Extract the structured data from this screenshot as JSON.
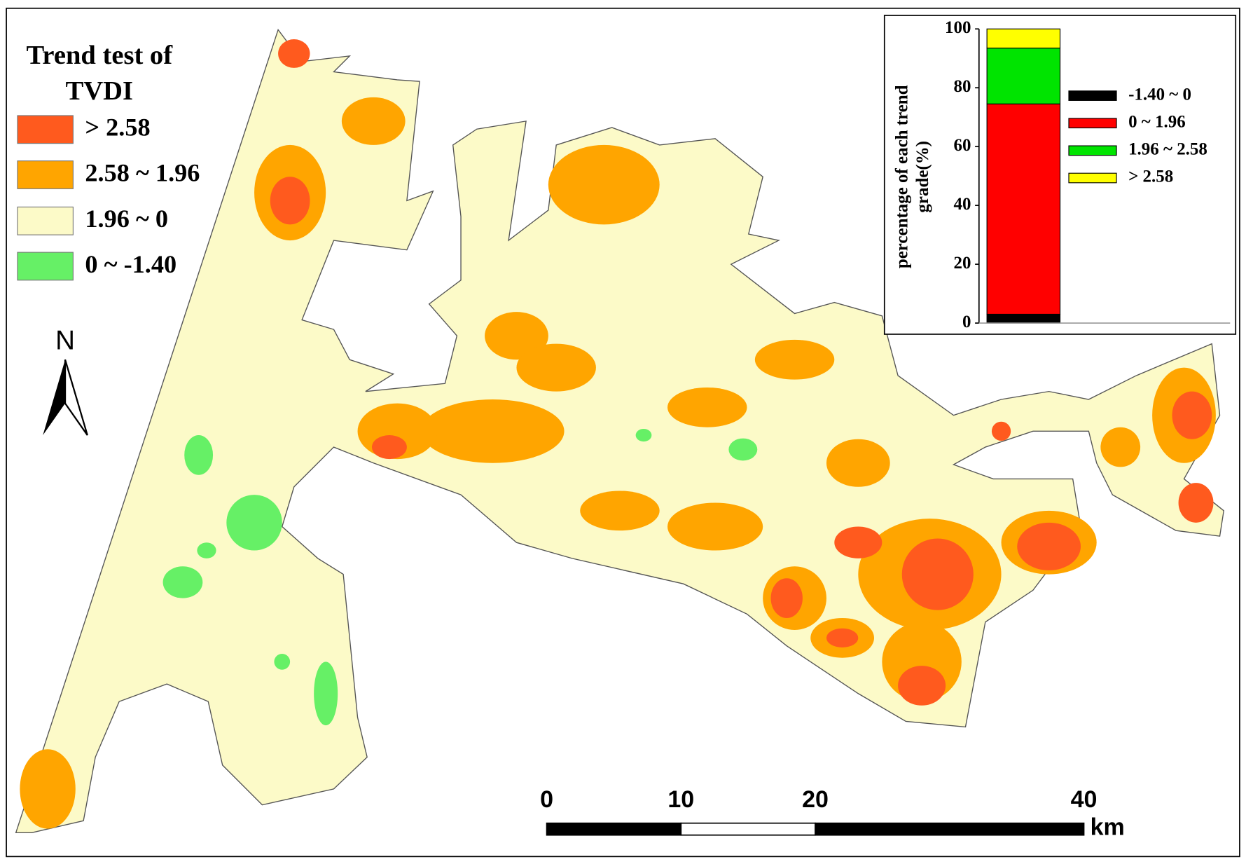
{
  "legend": {
    "title_lines": [
      "Trend test of",
      "TVDI"
    ],
    "items": [
      {
        "label": "> 2.58",
        "color": "#ff5a1e"
      },
      {
        "label": "2.58 ~ 1.96",
        "color": "#ffa500"
      },
      {
        "label": "1.96 ~ 0",
        "color": "#fcfac8"
      },
      {
        "label": "0 ~ -1.40",
        "color": "#66f066"
      }
    ]
  },
  "north": "N",
  "scale_bar": {
    "ticks": [
      0,
      10,
      20,
      40
    ],
    "unit": "km"
  },
  "chart_data": {
    "type": "bar",
    "stacked": true,
    "y_label_lines": [
      "percentage of each trend",
      "grade(%)"
    ],
    "ylim": [
      0,
      100
    ],
    "yticks": [
      0,
      20,
      40,
      60,
      80,
      100
    ],
    "series": [
      {
        "name": "-1.40 ~ 0",
        "color": "#000000",
        "values": [
          3
        ]
      },
      {
        "name": "0 ~ 1.96",
        "color": "#ff0000",
        "values": [
          71.5
        ]
      },
      {
        "name": "1.96 ~ 2.58",
        "color": "#00e400",
        "values": [
          19
        ]
      },
      {
        "name": "> 2.58",
        "color": "#ffff00",
        "values": [
          6.5
        ]
      }
    ]
  }
}
